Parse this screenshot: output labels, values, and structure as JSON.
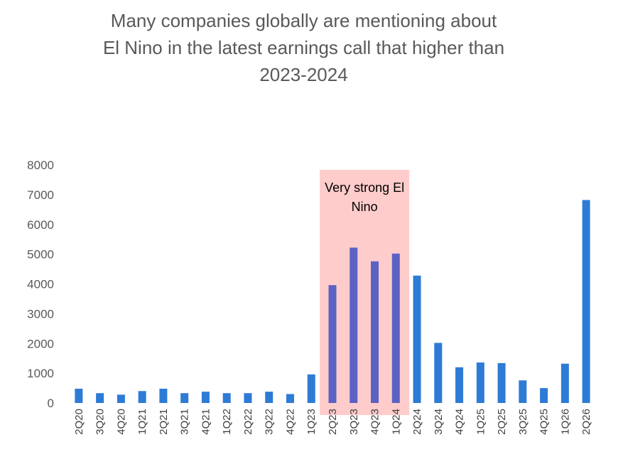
{
  "chart_data": {
    "type": "bar",
    "title_lines": [
      "Many companies globally are mentioning about",
      "El Nino in the latest earnings call that higher than",
      "2023-2024"
    ],
    "xlabel": "",
    "ylabel": "",
    "ylim": [
      0,
      8000
    ],
    "yticks": [
      0,
      1000,
      2000,
      3000,
      4000,
      5000,
      6000,
      7000,
      8000
    ],
    "grid": false,
    "categories": [
      "2Q20",
      "3Q20",
      "4Q20",
      "1Q21",
      "2Q21",
      "3Q21",
      "4Q21",
      "1Q22",
      "2Q22",
      "3Q22",
      "4Q22",
      "1Q23",
      "2Q23",
      "3Q23",
      "4Q23",
      "1Q24",
      "2Q24",
      "3Q24",
      "4Q24",
      "1Q25",
      "2Q25",
      "3Q25",
      "4Q25",
      "1Q26",
      "2Q26"
    ],
    "values": [
      480,
      330,
      280,
      400,
      480,
      330,
      380,
      330,
      330,
      380,
      300,
      960,
      3960,
      5220,
      4760,
      5020,
      4280,
      2020,
      1200,
      1360,
      1340,
      760,
      500,
      1320,
      6820
    ],
    "bar_color": "#2e7bd6",
    "highlight_bar_color": "#5b62c4",
    "highlight": {
      "from": "2Q23",
      "to": "1Q24",
      "color": "#ffcccc",
      "label_lines": [
        "Very strong El",
        "Nino"
      ]
    }
  }
}
